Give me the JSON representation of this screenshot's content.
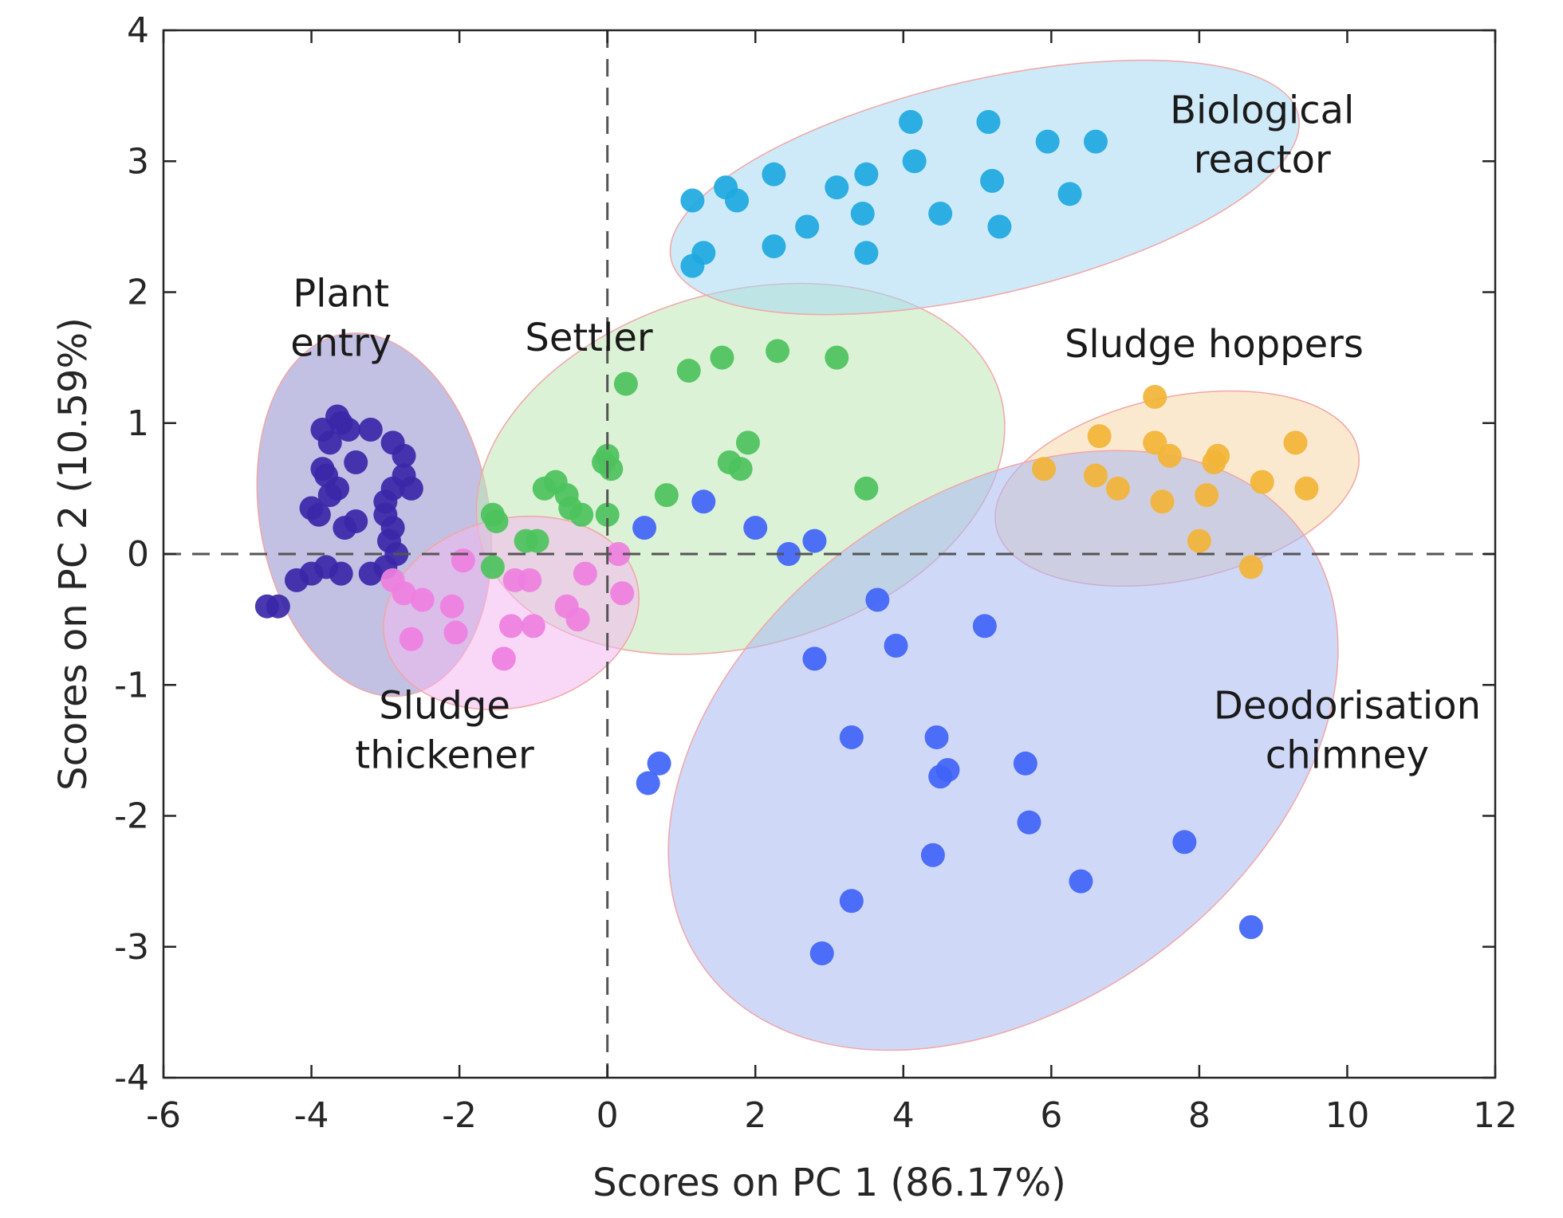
{
  "chart_data": {
    "type": "scatter",
    "xlabel": "Scores on PC 1 (86.17%)",
    "ylabel": "Scores on PC 2 (10.59%)",
    "xlim": [
      -6,
      12
    ],
    "ylim": [
      -4,
      4
    ],
    "xticks": [
      "-6",
      "-4",
      "-2",
      "0",
      "2",
      "4",
      "6",
      "8",
      "10",
      "12"
    ],
    "yticks": [
      "4",
      "3",
      "2",
      "1",
      "0",
      "-1",
      "-2",
      "-3",
      "-4"
    ],
    "reference_lines": {
      "x": 0,
      "y": 0,
      "style": "dashed"
    },
    "series": [
      {
        "name": "Plant entry",
        "label_lines": [
          "Plant",
          "entry"
        ],
        "point_color": "#3a27a8",
        "ellipse_fill": "#8f8ccc",
        "ellipse": {
          "cx": -3.15,
          "cy": 0.3,
          "rx": 1.55,
          "ry": 1.4,
          "angle": -10
        },
        "points": [
          [
            -4.6,
            -0.4
          ],
          [
            -4.45,
            -0.4
          ],
          [
            -4.2,
            -0.2
          ],
          [
            -4.0,
            -0.15
          ],
          [
            -3.8,
            -0.1
          ],
          [
            -3.6,
            -0.15
          ],
          [
            -3.2,
            -0.15
          ],
          [
            -3.0,
            -0.1
          ],
          [
            -2.85,
            0.0
          ],
          [
            -2.9,
            0.2
          ],
          [
            -3.0,
            0.4
          ],
          [
            -2.9,
            0.5
          ],
          [
            -2.75,
            0.6
          ],
          [
            -2.65,
            0.5
          ],
          [
            -3.0,
            0.3
          ],
          [
            -2.95,
            0.1
          ],
          [
            -3.4,
            0.25
          ],
          [
            -3.55,
            0.2
          ],
          [
            -3.9,
            0.3
          ],
          [
            -4.0,
            0.35
          ],
          [
            -3.75,
            0.45
          ],
          [
            -3.8,
            0.6
          ],
          [
            -3.65,
            0.5
          ],
          [
            -3.85,
            0.65
          ],
          [
            -3.75,
            0.85
          ],
          [
            -3.85,
            0.95
          ],
          [
            -3.6,
            1.0
          ],
          [
            -3.5,
            0.95
          ],
          [
            -3.2,
            0.95
          ],
          [
            -2.9,
            0.85
          ],
          [
            -2.75,
            0.75
          ],
          [
            -3.4,
            0.7
          ],
          [
            -3.65,
            1.05
          ]
        ]
      },
      {
        "name": "Settler",
        "label_lines": [
          "Settler"
        ],
        "point_color": "#4cc25c",
        "ellipse_fill": "#bfe8b5",
        "ellipse": {
          "cx": 1.8,
          "cy": 0.65,
          "rx": 3.65,
          "ry": 1.35,
          "angle": -16
        },
        "points": [
          [
            0.25,
            1.3
          ],
          [
            1.1,
            1.4
          ],
          [
            1.55,
            1.5
          ],
          [
            2.3,
            1.55
          ],
          [
            3.1,
            1.5
          ],
          [
            1.9,
            0.85
          ],
          [
            1.65,
            0.7
          ],
          [
            1.8,
            0.65
          ],
          [
            0.0,
            0.75
          ],
          [
            0.05,
            0.65
          ],
          [
            -0.05,
            0.7
          ],
          [
            -0.7,
            0.55
          ],
          [
            -0.85,
            0.5
          ],
          [
            -0.55,
            0.45
          ],
          [
            -0.5,
            0.35
          ],
          [
            -0.35,
            0.3
          ],
          [
            0.0,
            0.3
          ],
          [
            -1.55,
            0.3
          ],
          [
            -1.5,
            0.25
          ],
          [
            -1.1,
            0.1
          ],
          [
            -0.95,
            0.1
          ],
          [
            -1.55,
            -0.1
          ],
          [
            0.8,
            0.45
          ],
          [
            3.5,
            0.5
          ]
        ]
      },
      {
        "name": "Biological reactor",
        "label_lines": [
          "Biological",
          "reactor"
        ],
        "point_color": "#1ea8e0",
        "ellipse_fill": "#a5d8f2",
        "ellipse": {
          "cx": 5.1,
          "cy": 2.8,
          "rx": 4.35,
          "ry": 0.82,
          "angle": -13
        },
        "points": [
          [
            1.15,
            2.7
          ],
          [
            1.6,
            2.8
          ],
          [
            1.75,
            2.7
          ],
          [
            2.25,
            2.9
          ],
          [
            2.25,
            2.35
          ],
          [
            2.7,
            2.5
          ],
          [
            3.1,
            2.8
          ],
          [
            3.45,
            2.6
          ],
          [
            3.5,
            2.9
          ],
          [
            3.5,
            2.3
          ],
          [
            4.1,
            3.3
          ],
          [
            4.15,
            3.0
          ],
          [
            4.5,
            2.6
          ],
          [
            5.15,
            3.3
          ],
          [
            5.2,
            2.85
          ],
          [
            5.3,
            2.5
          ],
          [
            5.95,
            3.15
          ],
          [
            6.25,
            2.75
          ],
          [
            6.6,
            3.15
          ],
          [
            1.3,
            2.3
          ],
          [
            1.15,
            2.2
          ]
        ]
      },
      {
        "name": "Sludge hoppers",
        "label_lines": [
          "Sludge hoppers"
        ],
        "point_color": "#f2b437",
        "ellipse_fill": "#f5d7a5",
        "ellipse": {
          "cx": 7.7,
          "cy": 0.5,
          "rx": 2.5,
          "ry": 0.7,
          "angle": -12
        },
        "points": [
          [
            5.9,
            0.65
          ],
          [
            6.6,
            0.6
          ],
          [
            6.65,
            0.9
          ],
          [
            6.9,
            0.5
          ],
          [
            7.4,
            1.2
          ],
          [
            7.4,
            0.85
          ],
          [
            7.5,
            0.4
          ],
          [
            7.6,
            0.75
          ],
          [
            8.0,
            0.1
          ],
          [
            8.1,
            0.45
          ],
          [
            8.2,
            0.7
          ],
          [
            8.25,
            0.75
          ],
          [
            8.7,
            -0.1
          ],
          [
            8.85,
            0.55
          ],
          [
            9.3,
            0.85
          ],
          [
            9.45,
            0.5
          ]
        ]
      },
      {
        "name": "Sludge thickener",
        "label_lines": [
          "Sludge",
          "thickener"
        ],
        "point_color": "#ee7fe0",
        "ellipse_fill": "#f3b8ee",
        "ellipse": {
          "cx": -1.3,
          "cy": -0.45,
          "rx": 1.75,
          "ry": 0.72,
          "angle": -14
        },
        "points": [
          [
            -2.9,
            -0.2
          ],
          [
            -2.75,
            -0.3
          ],
          [
            -2.5,
            -0.35
          ],
          [
            -2.1,
            -0.4
          ],
          [
            -2.05,
            -0.6
          ],
          [
            -1.95,
            -0.05
          ],
          [
            -2.65,
            -0.65
          ],
          [
            -1.4,
            -0.8
          ],
          [
            -1.3,
            -0.55
          ],
          [
            -1.0,
            -0.55
          ],
          [
            -1.25,
            -0.2
          ],
          [
            -1.05,
            -0.2
          ],
          [
            -0.55,
            -0.4
          ],
          [
            -0.4,
            -0.5
          ],
          [
            -0.3,
            -0.15
          ],
          [
            0.2,
            -0.3
          ],
          [
            0.15,
            0.0
          ]
        ]
      },
      {
        "name": "Deodorisation chimney",
        "label_lines": [
          "Deodorisation",
          "chimney"
        ],
        "point_color": "#3f64f7",
        "ellipse_fill": "#a9b8f3",
        "ellipse": {
          "cx": 5.35,
          "cy": -1.5,
          "rx": 5.0,
          "ry": 1.95,
          "angle": -36
        },
        "points": [
          [
            0.5,
            0.2
          ],
          [
            1.3,
            0.4
          ],
          [
            2.0,
            0.2
          ],
          [
            2.45,
            0.0
          ],
          [
            2.8,
            0.1
          ],
          [
            3.65,
            -0.35
          ],
          [
            3.9,
            -0.7
          ],
          [
            2.8,
            -0.8
          ],
          [
            5.1,
            -0.55
          ],
          [
            3.3,
            -1.4
          ],
          [
            4.45,
            -1.4
          ],
          [
            4.5,
            -1.7
          ],
          [
            4.6,
            -1.65
          ],
          [
            5.65,
            -1.6
          ],
          [
            0.7,
            -1.6
          ],
          [
            0.55,
            -1.75
          ],
          [
            5.7,
            -2.05
          ],
          [
            4.4,
            -2.3
          ],
          [
            6.4,
            -2.5
          ],
          [
            7.8,
            -2.2
          ],
          [
            3.3,
            -2.65
          ],
          [
            2.9,
            -3.05
          ],
          [
            8.7,
            -2.85
          ]
        ]
      }
    ]
  }
}
